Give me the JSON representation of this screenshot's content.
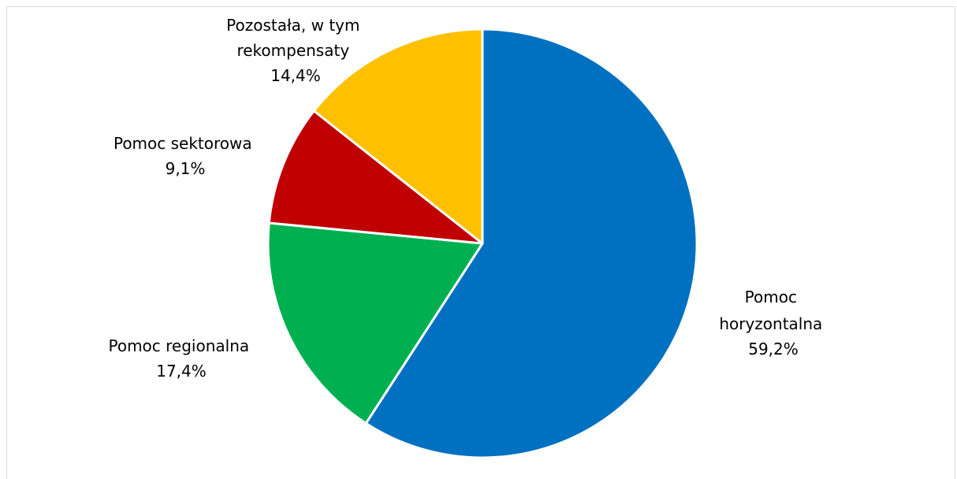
{
  "chart_data": {
    "type": "pie",
    "title": "",
    "slices": [
      {
        "label_lines": [
          "Pomoc",
          "horyzontalna"
        ],
        "value": 59.2,
        "value_text": "59,2%",
        "color": "#0070C0"
      },
      {
        "label_lines": [
          "Pomoc regionalna"
        ],
        "value": 17.4,
        "value_text": "17,4%",
        "color": "#00B050"
      },
      {
        "label_lines": [
          "Pomoc sektorowa"
        ],
        "value": 9.1,
        "value_text": "9,1%",
        "color": "#C00000"
      },
      {
        "label_lines": [
          "Pozostała, w tym",
          "rekompensaty"
        ],
        "value": 14.4,
        "value_text": "14,4%",
        "color": "#FFC000"
      }
    ],
    "start_angle": "12 o'clock",
    "direction": "clockwise",
    "legend": "none"
  }
}
